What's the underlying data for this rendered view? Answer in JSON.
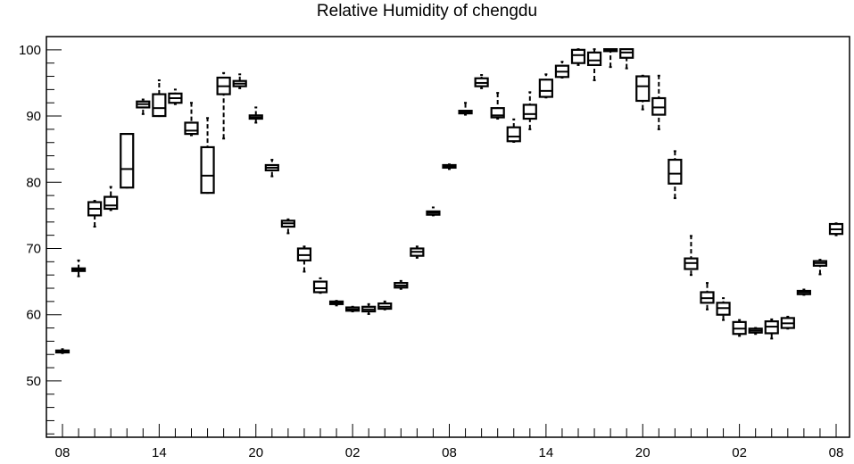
{
  "chart_data": {
    "type": "boxplot",
    "title": "Relative Humidity of chengdu",
    "xlabel": "",
    "ylabel": "",
    "ylim": [
      41.5,
      102
    ],
    "y_ticks": [
      50,
      60,
      70,
      80,
      90,
      100
    ],
    "x_tick_labels": [
      "08",
      "14",
      "20",
      "02",
      "08",
      "14",
      "20",
      "02",
      "08"
    ],
    "x_tick_hours": [
      0,
      6,
      12,
      18,
      24,
      30,
      36,
      42,
      48
    ],
    "grid": false,
    "legend": "none",
    "boxes": [
      {
        "hour": 0,
        "min": 54.2,
        "q1": 54.3,
        "median": 54.5,
        "q3": 54.6,
        "max": 54.8
      },
      {
        "hour": 1,
        "min": 65.8,
        "q1": 66.6,
        "median": 66.8,
        "q3": 67.0,
        "max": 68.2
      },
      {
        "hour": 2,
        "min": 73.3,
        "q1": 75.0,
        "median": 76.0,
        "q3": 77.0,
        "max": 77.2
      },
      {
        "hour": 3,
        "min": 75.8,
        "q1": 76.0,
        "median": 76.5,
        "q3": 77.8,
        "max": 79.3
      },
      {
        "hour": 4,
        "min": 79.2,
        "q1": 79.2,
        "median": 82.0,
        "q3": 87.3,
        "max": 87.3
      },
      {
        "hour": 5,
        "min": 90.3,
        "q1": 91.3,
        "median": 91.8,
        "q3": 92.2,
        "max": 92.5
      },
      {
        "hour": 6,
        "min": 90.0,
        "q1": 90.0,
        "median": 91.2,
        "q3": 93.3,
        "max": 95.4
      },
      {
        "hour": 7,
        "min": 91.8,
        "q1": 92.0,
        "median": 92.7,
        "q3": 93.4,
        "max": 94.0
      },
      {
        "hour": 8,
        "min": 87.1,
        "q1": 87.3,
        "median": 87.8,
        "q3": 89.0,
        "max": 92.0
      },
      {
        "hour": 9,
        "min": 78.4,
        "q1": 78.4,
        "median": 81.0,
        "q3": 85.3,
        "max": 89.7
      },
      {
        "hour": 10,
        "min": 86.6,
        "q1": 93.3,
        "median": 94.5,
        "q3": 95.8,
        "max": 96.5
      },
      {
        "hour": 11,
        "min": 94.2,
        "q1": 94.5,
        "median": 94.9,
        "q3": 95.3,
        "max": 96.3
      },
      {
        "hour": 12,
        "min": 89.0,
        "q1": 89.6,
        "median": 89.8,
        "q3": 90.1,
        "max": 91.3
      },
      {
        "hour": 13,
        "min": 80.9,
        "q1": 81.8,
        "median": 82.2,
        "q3": 82.6,
        "max": 83.4
      },
      {
        "hour": 14,
        "min": 72.3,
        "q1": 73.3,
        "median": 73.8,
        "q3": 74.2,
        "max": 74.4
      },
      {
        "hour": 15,
        "min": 66.5,
        "q1": 68.2,
        "median": 69.0,
        "q3": 70.0,
        "max": 70.3
      },
      {
        "hour": 16,
        "min": 63.3,
        "q1": 63.4,
        "median": 64.0,
        "q3": 65.0,
        "max": 65.5
      },
      {
        "hour": 17,
        "min": 61.4,
        "q1": 61.6,
        "median": 61.8,
        "q3": 62.0,
        "max": 62.1
      },
      {
        "hour": 18,
        "min": 60.5,
        "q1": 60.6,
        "median": 60.8,
        "q3": 61.1,
        "max": 61.2
      },
      {
        "hour": 19,
        "min": 60.1,
        "q1": 60.5,
        "median": 60.8,
        "q3": 61.2,
        "max": 61.6
      },
      {
        "hour": 20,
        "min": 60.8,
        "q1": 60.9,
        "median": 61.2,
        "q3": 61.7,
        "max": 62.0
      },
      {
        "hour": 21,
        "min": 63.9,
        "q1": 64.1,
        "median": 64.4,
        "q3": 64.8,
        "max": 65.1
      },
      {
        "hour": 22,
        "min": 68.6,
        "q1": 68.9,
        "median": 69.5,
        "q3": 70.0,
        "max": 70.3
      },
      {
        "hour": 23,
        "min": 75.0,
        "q1": 75.1,
        "median": 75.4,
        "q3": 75.6,
        "max": 76.2
      },
      {
        "hour": 24,
        "min": 82.0,
        "q1": 82.2,
        "median": 82.4,
        "q3": 82.6,
        "max": 82.7
      },
      {
        "hour": 25,
        "min": 90.2,
        "q1": 90.4,
        "median": 90.6,
        "q3": 90.8,
        "max": 92.0
      },
      {
        "hour": 26,
        "min": 94.2,
        "q1": 94.5,
        "median": 95.0,
        "q3": 95.7,
        "max": 96.2
      },
      {
        "hour": 27,
        "min": 89.6,
        "q1": 89.8,
        "median": 90.1,
        "q3": 91.2,
        "max": 93.5
      },
      {
        "hour": 28,
        "min": 86.1,
        "q1": 86.2,
        "median": 86.9,
        "q3": 88.3,
        "max": 89.5
      },
      {
        "hour": 29,
        "min": 88.0,
        "q1": 89.6,
        "median": 90.3,
        "q3": 91.7,
        "max": 93.6
      },
      {
        "hour": 30,
        "min": 92.8,
        "q1": 92.9,
        "median": 93.8,
        "q3": 95.5,
        "max": 96.3
      },
      {
        "hour": 31,
        "min": 95.8,
        "q1": 95.9,
        "median": 96.7,
        "q3": 97.6,
        "max": 98.2
      },
      {
        "hour": 32,
        "min": 97.7,
        "q1": 98.0,
        "median": 99.2,
        "q3": 100.0,
        "max": 100.1
      },
      {
        "hour": 33,
        "min": 95.4,
        "q1": 97.7,
        "median": 98.4,
        "q3": 99.6,
        "max": 100.1
      },
      {
        "hour": 34,
        "min": 97.4,
        "q1": 99.8,
        "median": 100.0,
        "q3": 100.1,
        "max": 100.1
      },
      {
        "hour": 35,
        "min": 97.2,
        "q1": 98.8,
        "median": 99.6,
        "q3": 100.1,
        "max": 100.1
      },
      {
        "hour": 36,
        "min": 91.0,
        "q1": 92.3,
        "median": 94.5,
        "q3": 96.0,
        "max": 96.1
      },
      {
        "hour": 37,
        "min": 88.0,
        "q1": 90.2,
        "median": 91.3,
        "q3": 92.7,
        "max": 96.1
      },
      {
        "hour": 38,
        "min": 77.6,
        "q1": 79.8,
        "median": 81.3,
        "q3": 83.4,
        "max": 84.7
      },
      {
        "hour": 39,
        "min": 66.0,
        "q1": 66.9,
        "median": 67.8,
        "q3": 68.5,
        "max": 71.9
      },
      {
        "hour": 40,
        "min": 60.8,
        "q1": 61.8,
        "median": 62.5,
        "q3": 63.4,
        "max": 64.8
      },
      {
        "hour": 41,
        "min": 59.2,
        "q1": 60.0,
        "median": 61.0,
        "q3": 61.8,
        "max": 62.5
      },
      {
        "hour": 42,
        "min": 56.8,
        "q1": 57.1,
        "median": 57.9,
        "q3": 58.9,
        "max": 59.2
      },
      {
        "hour": 43,
        "min": 57.1,
        "q1": 57.3,
        "median": 57.6,
        "q3": 57.9,
        "max": 58.0
      },
      {
        "hour": 44,
        "min": 56.4,
        "q1": 57.2,
        "median": 58.2,
        "q3": 59.0,
        "max": 59.3
      },
      {
        "hour": 45,
        "min": 57.9,
        "q1": 58.0,
        "median": 58.7,
        "q3": 59.5,
        "max": 59.7
      },
      {
        "hour": 46,
        "min": 63.0,
        "q1": 63.1,
        "median": 63.4,
        "q3": 63.6,
        "max": 63.8
      },
      {
        "hour": 47,
        "min": 66.1,
        "q1": 67.4,
        "median": 67.8,
        "q3": 68.1,
        "max": 68.3
      },
      {
        "hour": 48,
        "min": 72.0,
        "q1": 72.2,
        "median": 72.9,
        "q3": 73.7,
        "max": 73.8
      }
    ]
  }
}
